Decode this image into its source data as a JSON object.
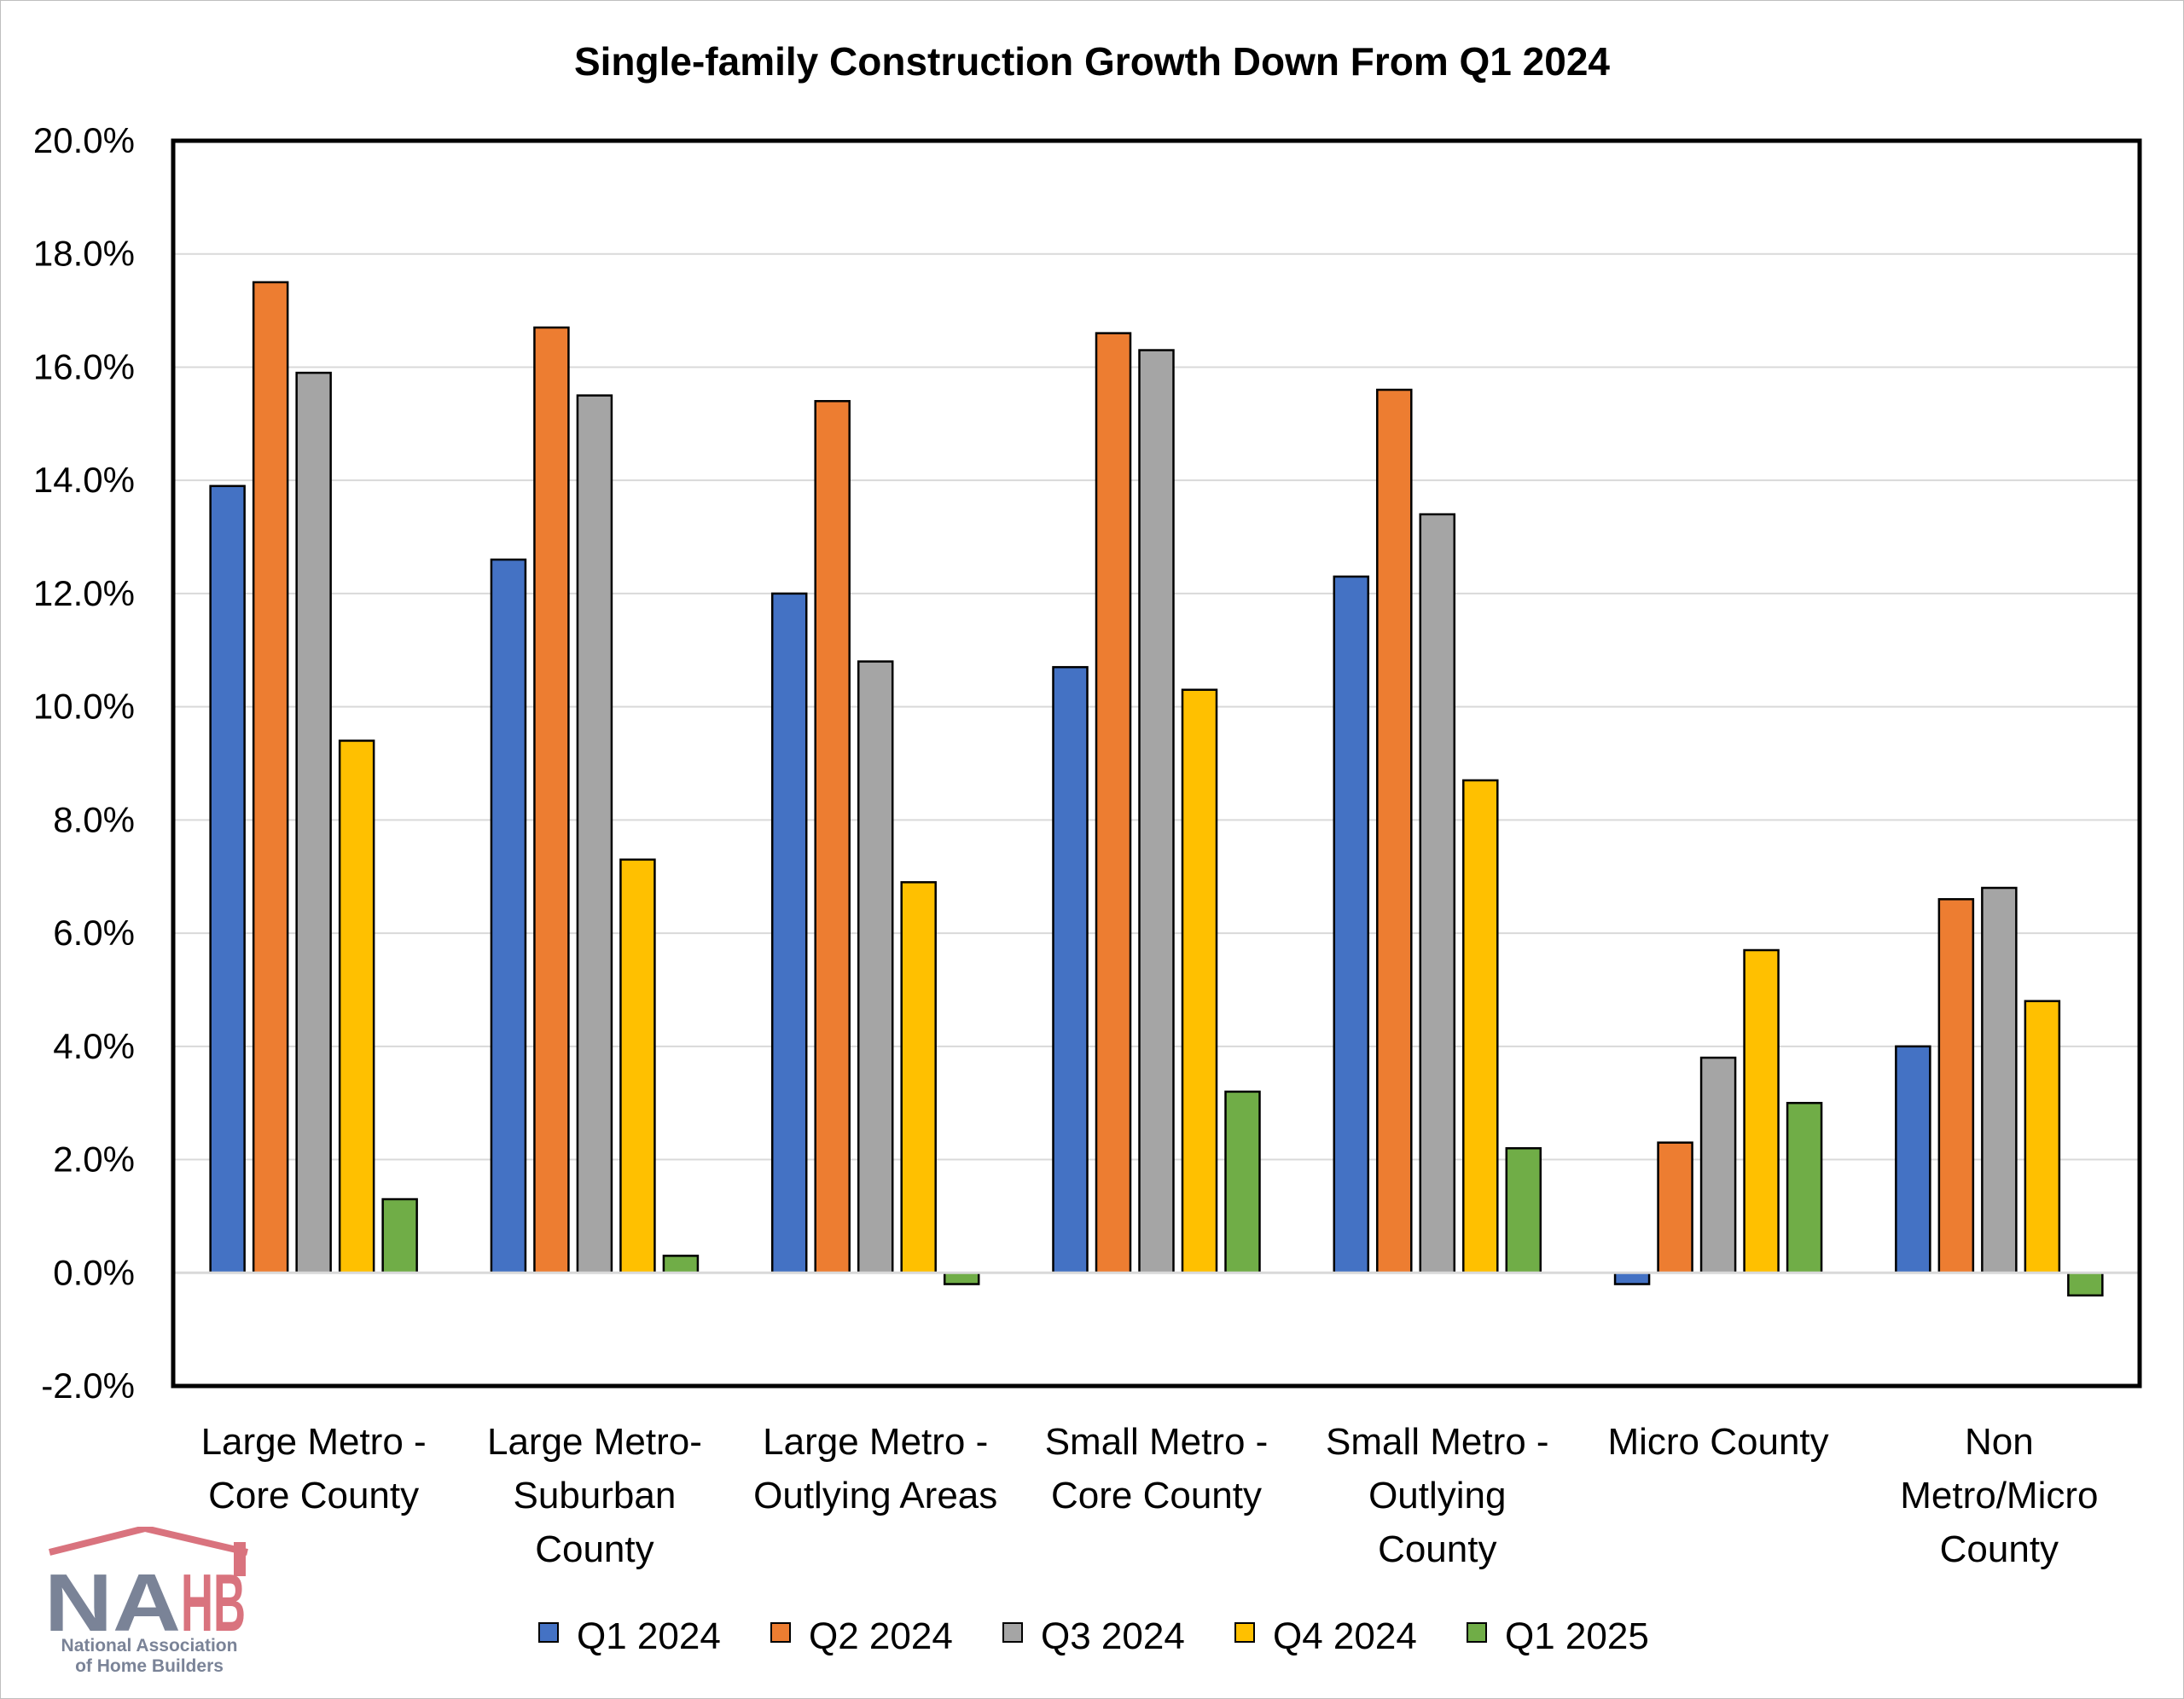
{
  "chart_data": {
    "type": "bar",
    "title": "Single-family Construction Growth Down From Q1 2024",
    "categories": [
      [
        "Large Metro -",
        "Core County"
      ],
      [
        "Large Metro-",
        "Suburban",
        "County"
      ],
      [
        "Large Metro -",
        "Outlying Areas"
      ],
      [
        "Small Metro -",
        "Core County"
      ],
      [
        "Small Metro -",
        "Outlying",
        "County"
      ],
      [
        "Micro County"
      ],
      [
        "Non",
        "Metro/Micro",
        "County"
      ]
    ],
    "series": [
      {
        "name": "Q1 2024",
        "color": "#4472C4",
        "values": [
          13.9,
          12.6,
          12.0,
          10.7,
          12.3,
          -0.2,
          4.0
        ]
      },
      {
        "name": "Q2 2024",
        "color": "#ED7D31",
        "values": [
          17.5,
          16.7,
          15.4,
          16.6,
          15.6,
          2.3,
          6.6
        ]
      },
      {
        "name": "Q3 2024",
        "color": "#A5A5A5",
        "values": [
          15.9,
          15.5,
          10.8,
          16.3,
          13.4,
          3.8,
          6.8
        ]
      },
      {
        "name": "Q4 2024",
        "color": "#FFC000",
        "values": [
          9.4,
          7.3,
          6.9,
          10.3,
          8.7,
          5.7,
          4.8
        ]
      },
      {
        "name": "Q1 2025",
        "color": "#70AD47",
        "values": [
          1.3,
          0.3,
          -0.2,
          3.2,
          2.2,
          3.0,
          -0.4
        ]
      }
    ],
    "ylim": [
      -2.0,
      20.0
    ],
    "yticks": [
      "-2.0%",
      "0.0%",
      "2.0%",
      "4.0%",
      "6.0%",
      "8.0%",
      "10.0%",
      "12.0%",
      "14.0%",
      "16.0%",
      "18.0%",
      "20.0%"
    ],
    "grid": true,
    "legend_position": "bottom"
  },
  "logo": {
    "mark": "NAHB",
    "line1": "National Association",
    "line2": "of Home Builders"
  }
}
